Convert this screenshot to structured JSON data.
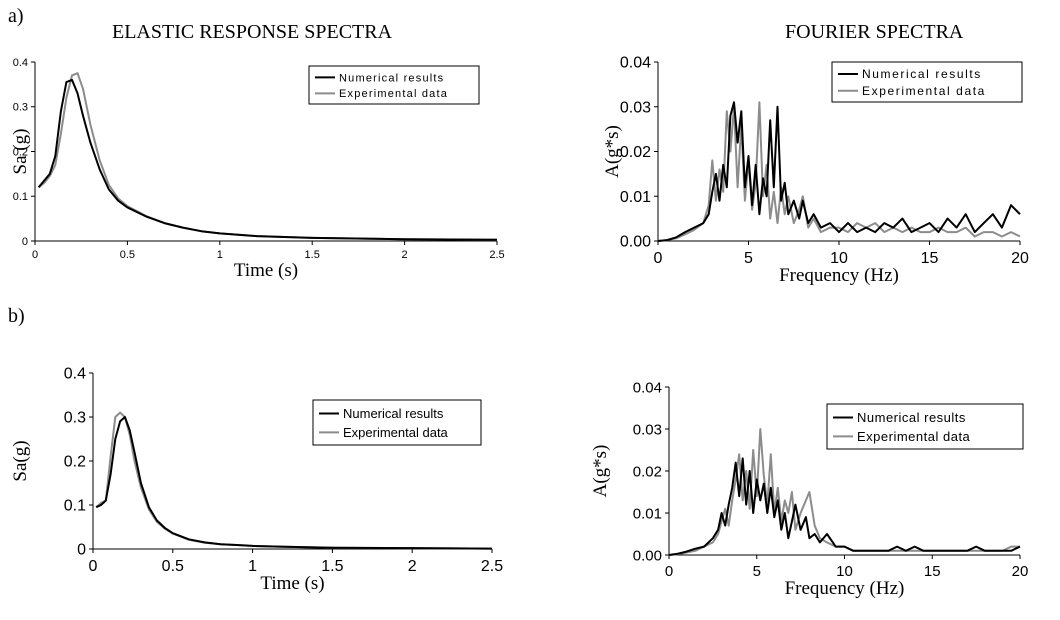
{
  "labels": {
    "panel_a": "a)",
    "panel_b": "b)",
    "col_left": "ELASTIC RESPONSE SPECTRA",
    "col_right": "FOURIER SPECTRA"
  },
  "colors": {
    "numerical": "#000000",
    "experimental": "#8c8c8c"
  },
  "chart_data": [
    {
      "type": "line",
      "panel": "a",
      "xlabel": "Time (s)",
      "ylabel": "Sa (g)",
      "xlim": [
        0,
        2.5
      ],
      "ylim": [
        0,
        0.4
      ],
      "xticks": [
        0,
        0.5,
        1,
        1.5,
        2,
        2.5
      ],
      "yticks": [
        0,
        0.1,
        0.2,
        0.3,
        0.4
      ],
      "xtick_labels": [
        "0",
        "0.5",
        "1",
        "1.5",
        "2",
        "2.5"
      ],
      "ytick_labels": [
        "0",
        "0.1",
        "0.2",
        "0.3",
        "0.4"
      ],
      "grid": false,
      "legend": "top-right",
      "series": [
        {
          "name": "Numerical results",
          "color": "#000000",
          "x": [
            0.02,
            0.05,
            0.08,
            0.11,
            0.14,
            0.17,
            0.2,
            0.23,
            0.26,
            0.3,
            0.35,
            0.4,
            0.45,
            0.5,
            0.6,
            0.7,
            0.8,
            0.9,
            1.0,
            1.2,
            1.5,
            2.0,
            2.5
          ],
          "y": [
            0.12,
            0.135,
            0.15,
            0.19,
            0.29,
            0.355,
            0.36,
            0.33,
            0.28,
            0.22,
            0.16,
            0.115,
            0.09,
            0.075,
            0.055,
            0.04,
            0.03,
            0.022,
            0.017,
            0.011,
            0.007,
            0.004,
            0.003
          ]
        },
        {
          "name": "Experimental data",
          "color": "#8c8c8c",
          "x": [
            0.02,
            0.05,
            0.08,
            0.11,
            0.14,
            0.17,
            0.2,
            0.23,
            0.26,
            0.3,
            0.35,
            0.4,
            0.45,
            0.5,
            0.6,
            0.7,
            0.8,
            0.9,
            1.0,
            1.2,
            1.5,
            2.0,
            2.5
          ],
          "y": [
            0.12,
            0.13,
            0.145,
            0.17,
            0.24,
            0.32,
            0.37,
            0.375,
            0.34,
            0.26,
            0.18,
            0.125,
            0.095,
            0.078,
            0.056,
            0.04,
            0.03,
            0.022,
            0.017,
            0.011,
            0.007,
            0.004,
            0.003
          ]
        }
      ]
    },
    {
      "type": "line",
      "panel": "a",
      "xlabel": "Frequency (Hz)",
      "ylabel": "A(g*s)",
      "xlim": [
        0,
        20
      ],
      "ylim": [
        0,
        0.04
      ],
      "xticks": [
        0,
        5,
        10,
        15,
        20
      ],
      "yticks": [
        0,
        0.01,
        0.02,
        0.03,
        0.04
      ],
      "xtick_labels": [
        "0",
        "5",
        "10",
        "15",
        "20"
      ],
      "ytick_labels": [
        "0.00",
        "0.01",
        "0.02",
        "0.03",
        "0.04"
      ],
      "grid": false,
      "legend": "top-right",
      "series": [
        {
          "name": "Numerical results",
          "color": "#000000",
          "x": [
            0,
            0.5,
            1,
            1.5,
            2,
            2.5,
            2.8,
            3,
            3.2,
            3.4,
            3.6,
            3.8,
            4,
            4.2,
            4.4,
            4.6,
            4.8,
            5,
            5.2,
            5.4,
            5.6,
            5.8,
            6,
            6.2,
            6.4,
            6.6,
            6.8,
            7,
            7.2,
            7.5,
            7.8,
            8,
            8.3,
            8.6,
            9,
            9.5,
            10,
            10.5,
            11,
            11.5,
            12,
            12.5,
            13,
            13.5,
            14,
            14.5,
            15,
            15.5,
            16,
            16.5,
            17,
            17.5,
            18,
            18.5,
            19,
            19.5,
            20
          ],
          "y": [
            0,
            0.0002,
            0.0008,
            0.002,
            0.003,
            0.004,
            0.006,
            0.011,
            0.015,
            0.009,
            0.017,
            0.012,
            0.028,
            0.031,
            0.022,
            0.029,
            0.012,
            0.019,
            0.008,
            0.017,
            0.006,
            0.014,
            0.01,
            0.027,
            0.012,
            0.03,
            0.009,
            0.013,
            0.006,
            0.009,
            0.005,
            0.009,
            0.004,
            0.006,
            0.003,
            0.004,
            0.002,
            0.004,
            0.002,
            0.003,
            0.002,
            0.004,
            0.003,
            0.005,
            0.002,
            0.003,
            0.004,
            0.002,
            0.005,
            0.003,
            0.006,
            0.002,
            0.004,
            0.006,
            0.003,
            0.008,
            0.006
          ]
        },
        {
          "name": "Experimental data",
          "color": "#8c8c8c",
          "x": [
            0,
            0.5,
            1,
            1.5,
            2,
            2.5,
            2.8,
            3,
            3.2,
            3.4,
            3.6,
            3.8,
            4,
            4.2,
            4.4,
            4.6,
            4.8,
            5,
            5.2,
            5.4,
            5.6,
            5.8,
            6,
            6.2,
            6.4,
            6.6,
            6.8,
            7,
            7.2,
            7.5,
            7.8,
            8,
            8.3,
            8.6,
            9,
            9.5,
            10,
            10.5,
            11,
            11.5,
            12,
            12.5,
            13,
            13.5,
            14,
            14.5,
            15,
            15.5,
            16,
            16.5,
            17,
            17.5,
            18,
            18.5,
            19,
            19.5,
            20
          ],
          "y": [
            0,
            0.0002,
            0.0006,
            0.0015,
            0.0025,
            0.004,
            0.008,
            0.018,
            0.009,
            0.016,
            0.011,
            0.029,
            0.02,
            0.03,
            0.012,
            0.026,
            0.009,
            0.018,
            0.007,
            0.013,
            0.031,
            0.01,
            0.017,
            0.005,
            0.011,
            0.004,
            0.012,
            0.006,
            0.01,
            0.004,
            0.007,
            0.01,
            0.003,
            0.005,
            0.002,
            0.003,
            0.003,
            0.002,
            0.004,
            0.003,
            0.004,
            0.002,
            0.003,
            0.002,
            0.003,
            0.002,
            0.002,
            0.003,
            0.002,
            0.002,
            0.003,
            0.001,
            0.002,
            0.002,
            0.001,
            0.002,
            0.001
          ]
        }
      ]
    },
    {
      "type": "line",
      "panel": "b",
      "xlabel": "Time (s)",
      "ylabel": "Sa(g)",
      "xlim": [
        0,
        2.5
      ],
      "ylim": [
        0,
        0.4
      ],
      "xticks": [
        0,
        0.5,
        1,
        1.5,
        2,
        2.5
      ],
      "yticks": [
        0,
        0.1,
        0.2,
        0.3,
        0.4
      ],
      "xtick_labels": [
        "0",
        "0.5",
        "1",
        "1.5",
        "2",
        "2.5"
      ],
      "ytick_labels": [
        "0",
        "0.1",
        "0.2",
        "0.3",
        "0.4"
      ],
      "grid": false,
      "legend": "top-right",
      "series": [
        {
          "name": "Numerical results",
          "color": "#000000",
          "x": [
            0.02,
            0.05,
            0.08,
            0.11,
            0.14,
            0.17,
            0.2,
            0.23,
            0.26,
            0.3,
            0.35,
            0.4,
            0.45,
            0.5,
            0.6,
            0.7,
            0.8,
            0.9,
            1.0,
            1.2,
            1.5,
            2.0,
            2.5
          ],
          "y": [
            0.095,
            0.1,
            0.11,
            0.17,
            0.25,
            0.29,
            0.3,
            0.27,
            0.22,
            0.15,
            0.095,
            0.065,
            0.048,
            0.036,
            0.022,
            0.015,
            0.011,
            0.009,
            0.007,
            0.005,
            0.003,
            0.002,
            0.001
          ]
        },
        {
          "name": "Experimental data",
          "color": "#8c8c8c",
          "x": [
            0.02,
            0.05,
            0.08,
            0.11,
            0.14,
            0.17,
            0.2,
            0.23,
            0.26,
            0.3,
            0.35,
            0.4,
            0.45,
            0.5,
            0.6,
            0.7,
            0.8,
            0.9,
            1.0,
            1.2,
            1.5,
            2.0,
            2.5
          ],
          "y": [
            0.095,
            0.105,
            0.11,
            0.21,
            0.3,
            0.31,
            0.3,
            0.26,
            0.2,
            0.14,
            0.09,
            0.062,
            0.046,
            0.035,
            0.021,
            0.014,
            0.011,
            0.009,
            0.007,
            0.005,
            0.003,
            0.002,
            0.001
          ]
        }
      ]
    },
    {
      "type": "line",
      "panel": "b",
      "xlabel": "Frequency (Hz)",
      "ylabel": "A(g*s)",
      "xlim": [
        0,
        20
      ],
      "ylim": [
        0,
        0.04
      ],
      "xticks": [
        0,
        5,
        10,
        15,
        20
      ],
      "yticks": [
        0,
        0.01,
        0.02,
        0.03,
        0.04
      ],
      "xtick_labels": [
        "0",
        "5",
        "10",
        "15",
        "20"
      ],
      "ytick_labels": [
        "0.00",
        "0.01",
        "0.02",
        "0.03",
        "0.04"
      ],
      "grid": false,
      "legend": "top-right",
      "series": [
        {
          "name": "Numerical results",
          "color": "#000000",
          "x": [
            0,
            0.5,
            1,
            1.5,
            2,
            2.5,
            2.8,
            3,
            3.2,
            3.4,
            3.6,
            3.8,
            4,
            4.2,
            4.4,
            4.6,
            4.8,
            5,
            5.2,
            5.4,
            5.6,
            5.8,
            6,
            6.2,
            6.4,
            6.6,
            6.8,
            7,
            7.2,
            7.5,
            7.8,
            8,
            8.3,
            8.6,
            9,
            9.5,
            10,
            10.5,
            11,
            11.5,
            12,
            12.5,
            13,
            13.5,
            14,
            14.5,
            15,
            15.5,
            16,
            16.5,
            17,
            17.5,
            18,
            18.5,
            19,
            19.5,
            20
          ],
          "y": [
            0,
            0.0003,
            0.0008,
            0.0015,
            0.002,
            0.004,
            0.006,
            0.01,
            0.007,
            0.012,
            0.016,
            0.022,
            0.014,
            0.023,
            0.012,
            0.02,
            0.01,
            0.018,
            0.013,
            0.017,
            0.01,
            0.016,
            0.009,
            0.013,
            0.006,
            0.01,
            0.004,
            0.008,
            0.012,
            0.006,
            0.009,
            0.004,
            0.005,
            0.003,
            0.005,
            0.002,
            0.002,
            0.001,
            0.001,
            0.001,
            0.001,
            0.001,
            0.002,
            0.001,
            0.002,
            0.001,
            0.001,
            0.001,
            0.001,
            0.001,
            0.001,
            0.002,
            0.001,
            0.001,
            0.001,
            0.001,
            0.002
          ]
        },
        {
          "name": "Experimental data",
          "color": "#8c8c8c",
          "x": [
            0,
            0.5,
            1,
            1.5,
            2,
            2.5,
            2.8,
            3,
            3.2,
            3.4,
            3.6,
            3.8,
            4,
            4.2,
            4.4,
            4.6,
            4.8,
            5,
            5.2,
            5.4,
            5.6,
            5.8,
            6,
            6.2,
            6.4,
            6.6,
            6.8,
            7,
            7.2,
            7.5,
            7.8,
            8,
            8.3,
            8.6,
            9,
            9.5,
            10,
            10.5,
            11,
            11.5,
            12,
            12.5,
            13,
            13.5,
            14,
            14.5,
            15,
            15.5,
            16,
            16.5,
            17,
            17.5,
            18,
            18.5,
            19,
            19.5,
            20
          ],
          "y": [
            0,
            0.0002,
            0.0006,
            0.001,
            0.002,
            0.003,
            0.005,
            0.008,
            0.011,
            0.007,
            0.013,
            0.018,
            0.024,
            0.013,
            0.02,
            0.011,
            0.025,
            0.014,
            0.03,
            0.019,
            0.012,
            0.024,
            0.01,
            0.016,
            0.008,
            0.013,
            0.01,
            0.015,
            0.006,
            0.01,
            0.013,
            0.015,
            0.007,
            0.004,
            0.003,
            0.002,
            0.002,
            0.001,
            0.001,
            0.001,
            0.001,
            0.001,
            0.001,
            0.001,
            0.001,
            0.001,
            0.001,
            0.001,
            0.001,
            0.001,
            0.001,
            0.001,
            0.001,
            0.001,
            0.001,
            0.002,
            0.002
          ]
        }
      ]
    }
  ]
}
